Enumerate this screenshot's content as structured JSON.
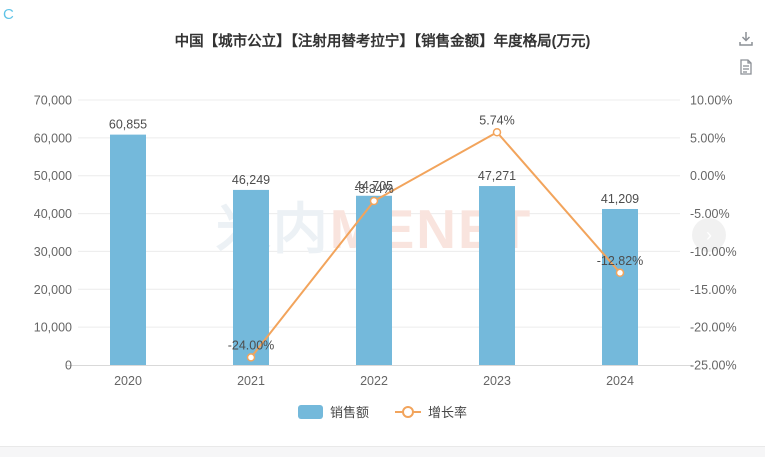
{
  "page": {
    "corner_label": "C"
  },
  "header": {
    "icons": [
      {
        "name": "download-icon"
      },
      {
        "name": "report-icon"
      }
    ]
  },
  "nav": {
    "next_label": "›"
  },
  "chart_data": {
    "type": "bar+line",
    "title": "中国【城市公立】【注射用替考拉宁】【销售金额】年度格局(万元)",
    "unit": "万元",
    "categories": [
      "2020",
      "2021",
      "2022",
      "2023",
      "2024"
    ],
    "series": [
      {
        "name": "销售额",
        "type": "bar",
        "axis": "left",
        "color": "#74b9db",
        "values": [
          60855,
          46249,
          44705,
          47271,
          41209
        ],
        "labels": [
          "60,855",
          "46,249",
          "44,705",
          "47,271",
          "41,209"
        ]
      },
      {
        "name": "增长率",
        "type": "line",
        "axis": "right",
        "color": "#f2a45c",
        "values": [
          null,
          -24.0,
          -3.34,
          5.74,
          -12.82
        ],
        "labels": [
          "",
          "-24.00%",
          "-3.34%",
          "5.74%",
          "-12.82%"
        ]
      }
    ],
    "left_axis": {
      "min": 0,
      "max": 70000,
      "step": 10000,
      "tick_labels": [
        "70,000",
        "60,000",
        "50,000",
        "40,000",
        "30,000",
        "20,000",
        "10,000",
        "0"
      ]
    },
    "right_axis": {
      "min": -25,
      "max": 10,
      "step": 5,
      "tick_labels": [
        "10.00%",
        "5.00%",
        "0.00%",
        "-5.00%",
        "-10.00%",
        "-15.00%",
        "-20.00%",
        "-25.00%"
      ]
    },
    "legend": {
      "position": "bottom",
      "items": [
        "销售额",
        "增长率"
      ]
    },
    "grid": true,
    "watermark_parts": [
      "米内",
      "MENET"
    ],
    "watermark_colors": [
      "#ecf1f5",
      "#f9e4de"
    ]
  }
}
